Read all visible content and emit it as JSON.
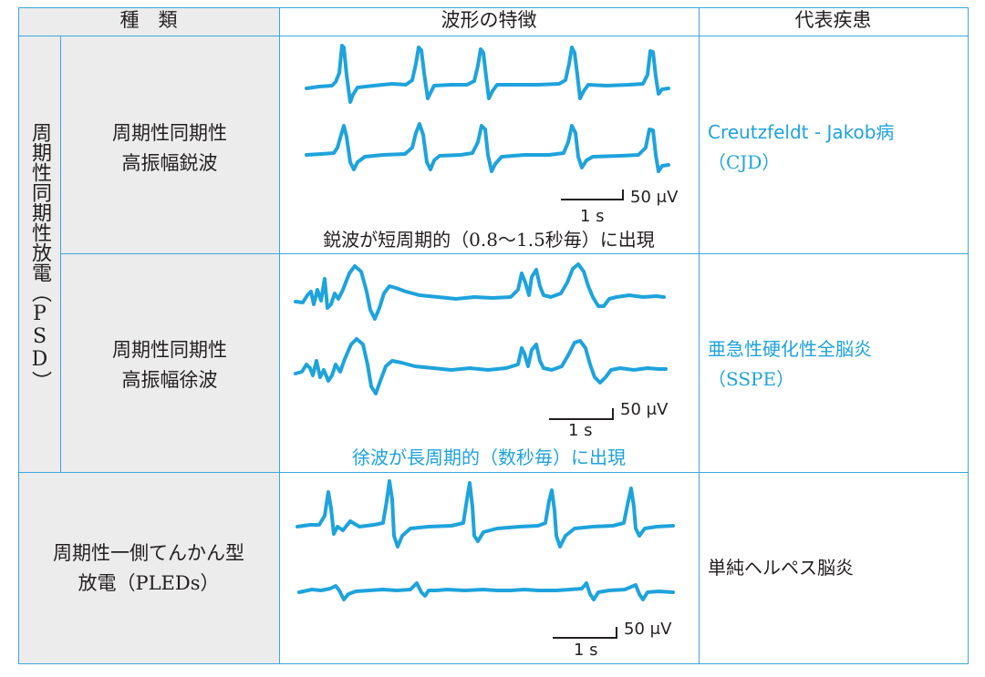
{
  "header": {
    "type": "種　類",
    "features": "波形の特徴",
    "disease": "代表疾患"
  },
  "psd_group": {
    "label": "周期性同期性放電（PSD）"
  },
  "rows": [
    {
      "type_line1": "周期性同期性",
      "type_line2": "高振幅鋭波",
      "scale_amp": "50 μV",
      "scale_time": "1 s",
      "caption": "鋭波が短周期的（0.8〜1.5秒毎）に出現",
      "disease_line1": "Creutzfeldt - Jakob病",
      "disease_line2": "（CJD）"
    },
    {
      "type_line1": "周期性同期性",
      "type_line2": "高振幅徐波",
      "scale_amp": "50 μV",
      "scale_time": "1 s",
      "caption": "徐波が長周期的（数秒毎）に出現",
      "disease_line1": "亜急性硬化性全脳炎",
      "disease_line2": "（SSPE）"
    },
    {
      "type_line1": "周期性一側てんかん型",
      "type_line2": "放電（PLEDs）",
      "scale_amp": "50 μV",
      "scale_time": "1 s",
      "caption": "",
      "disease_line1": "単純ヘルペス脳炎",
      "disease_line2": ""
    }
  ],
  "colors": {
    "wave": "#1ea3dc",
    "grid": "#3aa8dc",
    "type_cell_bg": "#ececec",
    "text": "#231f20"
  }
}
